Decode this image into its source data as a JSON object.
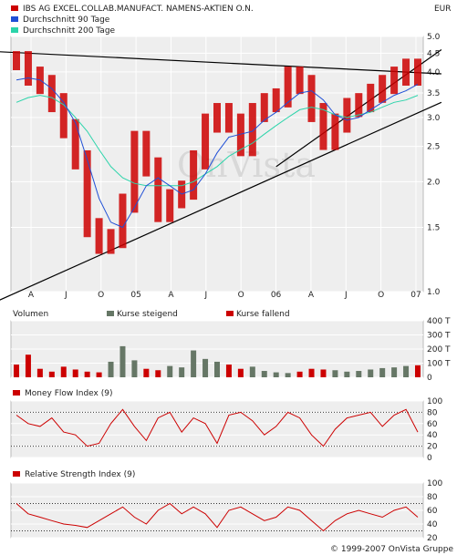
{
  "chart_data": [
    {
      "type": "line",
      "title": "IBS AG EXCEL.COLLAB.MANUFACT. NAMENS-AKTIEN O.N.",
      "currency": "EUR",
      "y_scale": "log",
      "ylim": [
        1.0,
        5.0
      ],
      "y_ticks": [
        "5.0",
        "4.5",
        "4.0",
        "3.5",
        "3.0",
        "2.5",
        "2.0",
        "1.5",
        "1.0"
      ],
      "x_tick_labels": [
        "A",
        "J",
        "O",
        "05",
        "A",
        "J",
        "O",
        "06",
        "A",
        "J",
        "O",
        "07"
      ],
      "x": [
        "2004-04",
        "2004-05",
        "2004-06",
        "2004-07",
        "2004-08",
        "2004-09",
        "2004-10",
        "2004-11",
        "2004-12",
        "2005-01",
        "2005-02",
        "2005-03",
        "2005-04",
        "2005-05",
        "2005-06",
        "2005-07",
        "2005-08",
        "2005-09",
        "2005-10",
        "2005-11",
        "2005-12",
        "2006-01",
        "2006-02",
        "2006-03",
        "2006-04",
        "2006-05",
        "2006-06",
        "2006-07",
        "2006-08",
        "2006-09",
        "2006-10",
        "2006-11",
        "2006-12",
        "2007-01",
        "2007-02"
      ],
      "series": [
        {
          "name": "IBS AG EXCEL.COLLAB.MANUFACT. NAMENS-AKTIEN O.N.",
          "color": "#cc0000",
          "values": [
            4.3,
            3.9,
            3.7,
            3.3,
            2.8,
            2.3,
            1.5,
            1.35,
            1.4,
            1.75,
            2.6,
            2.2,
            1.65,
            1.8,
            1.9,
            2.3,
            2.9,
            3.1,
            2.9,
            2.5,
            3.1,
            3.3,
            3.4,
            3.9,
            3.7,
            3.1,
            2.6,
            2.9,
            3.2,
            3.3,
            3.5,
            3.7,
            3.9,
            4.1,
            3.9
          ]
        },
        {
          "name": "Durchschnitt 90 Tage",
          "color": "#1f4fd6",
          "values": [
            3.8,
            3.85,
            3.8,
            3.6,
            3.3,
            2.9,
            2.3,
            1.8,
            1.55,
            1.5,
            1.7,
            1.95,
            2.05,
            1.95,
            1.85,
            1.9,
            2.1,
            2.4,
            2.65,
            2.7,
            2.75,
            2.95,
            3.1,
            3.3,
            3.5,
            3.55,
            3.35,
            3.05,
            2.95,
            3.0,
            3.15,
            3.3,
            3.45,
            3.55,
            3.7
          ]
        },
        {
          "name": "Durchschnitt 200 Tage",
          "color": "#2bd4aa",
          "values": [
            3.3,
            3.4,
            3.45,
            3.4,
            3.25,
            3.0,
            2.75,
            2.45,
            2.2,
            2.05,
            1.98,
            1.95,
            1.95,
            1.95,
            1.95,
            2.0,
            2.1,
            2.2,
            2.35,
            2.45,
            2.55,
            2.7,
            2.85,
            3.0,
            3.15,
            3.2,
            3.15,
            3.05,
            3.0,
            3.05,
            3.1,
            3.2,
            3.3,
            3.35,
            3.45
          ]
        }
      ],
      "trendlines": 3
    },
    {
      "type": "bar",
      "title": "Volumen",
      "legend": [
        "Kurse steigend",
        "Kurse fallend"
      ],
      "y_ticks": [
        "400 T",
        "300 T",
        "200 T",
        "100 T",
        "0"
      ],
      "colors": {
        "steigend": "#667766",
        "fallend": "#cc0000"
      },
      "values": [
        90,
        160,
        60,
        40,
        75,
        55,
        40,
        35,
        110,
        220,
        120,
        60,
        50,
        80,
        70,
        190,
        130,
        110,
        90,
        60,
        75,
        45,
        35,
        30,
        40,
        60,
        55,
        50,
        40,
        45,
        55,
        65,
        70,
        80,
        85
      ]
    },
    {
      "type": "line",
      "title": "Money Flow Index (9)",
      "ylim": [
        0,
        100
      ],
      "y_ticks": [
        "100",
        "80",
        "60",
        "40",
        "20",
        "0"
      ],
      "reference_lines": [
        20,
        80
      ],
      "values": [
        75,
        60,
        55,
        70,
        45,
        40,
        20,
        25,
        60,
        85,
        55,
        30,
        70,
        80,
        45,
        70,
        60,
        25,
        75,
        80,
        65,
        40,
        55,
        80,
        70,
        40,
        20,
        50,
        70,
        75,
        80,
        55,
        75,
        85,
        45
      ]
    },
    {
      "type": "line",
      "title": "Relative Strength Index (9)",
      "ylim": [
        20,
        100
      ],
      "y_ticks": [
        "100",
        "80",
        "60",
        "40",
        "20"
      ],
      "reference_lines": [
        30,
        70
      ],
      "values": [
        70,
        55,
        50,
        45,
        40,
        38,
        35,
        45,
        55,
        65,
        50,
        40,
        60,
        70,
        55,
        65,
        55,
        35,
        60,
        65,
        55,
        45,
        50,
        65,
        60,
        45,
        30,
        45,
        55,
        60,
        55,
        50,
        60,
        65,
        50
      ]
    }
  ],
  "footer": {
    "copyright": "© 1999-2007 OnVista Gruppe"
  },
  "watermark": "OnVista",
  "colors": {
    "price": "#cc0000",
    "ma90": "#1f4fd6",
    "ma200": "#2bd4aa",
    "background": "#eeeeee",
    "grid": "#ffffff"
  }
}
